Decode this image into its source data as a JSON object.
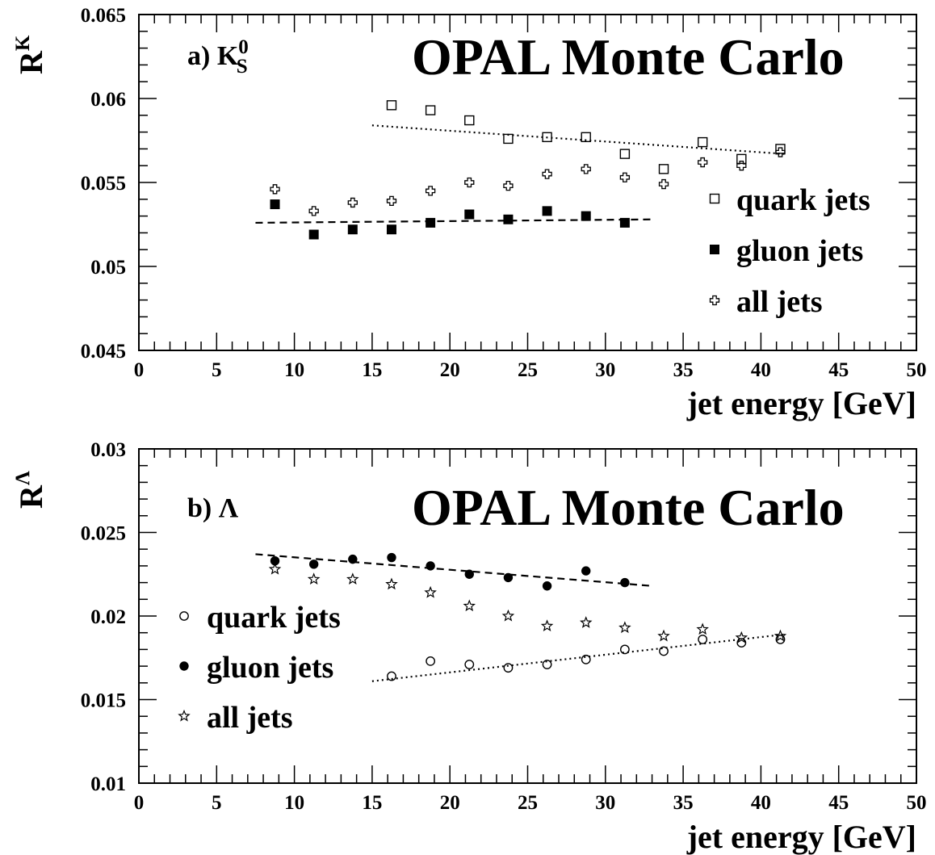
{
  "chart_data": [
    {
      "type": "scatter",
      "panel_label": "a) K",
      "panel_label_sub": "S",
      "panel_label_sup": "0",
      "title": "OPAL Monte Carlo",
      "xlabel": "jet energy [GeV]",
      "ylabel": "R",
      "ylabel_sup": "K",
      "xlim": [
        0,
        50
      ],
      "ylim": [
        0.045,
        0.065
      ],
      "xticks": [
        0,
        5,
        10,
        15,
        20,
        25,
        30,
        35,
        40,
        45,
        50
      ],
      "xtick_labels": [
        "0",
        "5",
        "10",
        "15",
        "20",
        "25",
        "30",
        "35",
        "40",
        "45",
        "50"
      ],
      "yticks": [
        0.045,
        0.05,
        0.055,
        0.06,
        0.065
      ],
      "ytick_labels": [
        "0.045",
        "0.05",
        "0.055",
        "0.06",
        "0.065"
      ],
      "legend_position": "right",
      "series": [
        {
          "name": "quark jets",
          "marker": "open-square",
          "x": [
            16.25,
            18.75,
            21.25,
            23.75,
            26.25,
            28.75,
            31.25,
            33.75,
            36.25,
            38.75,
            41.25
          ],
          "y": [
            0.0596,
            0.0593,
            0.0587,
            0.0576,
            0.0577,
            0.0577,
            0.0567,
            0.0558,
            0.0574,
            0.0564,
            0.057
          ]
        },
        {
          "name": "gluon jets",
          "marker": "filled-square",
          "x": [
            8.75,
            11.25,
            13.75,
            16.25,
            18.75,
            21.25,
            23.75,
            26.25,
            28.75,
            31.25
          ],
          "y": [
            0.0537,
            0.0519,
            0.0522,
            0.0522,
            0.0526,
            0.0531,
            0.0528,
            0.0533,
            0.053,
            0.0526
          ]
        },
        {
          "name": "all jets",
          "marker": "open-cross",
          "x": [
            8.75,
            11.25,
            13.75,
            16.25,
            18.75,
            21.25,
            23.75,
            26.25,
            28.75,
            31.25,
            33.75,
            36.25,
            38.75,
            41.25
          ],
          "y": [
            0.0546,
            0.0533,
            0.0538,
            0.0539,
            0.0545,
            0.055,
            0.0548,
            0.0555,
            0.0558,
            0.0553,
            0.0549,
            0.0562,
            0.056,
            0.0568
          ]
        }
      ],
      "fits": [
        {
          "series": "quark jets",
          "style": "dotted",
          "x": [
            15.0,
            41.5
          ],
          "y": [
            0.0584,
            0.0567
          ]
        },
        {
          "series": "gluon jets",
          "style": "dashed",
          "x": [
            7.5,
            33.0
          ],
          "y": [
            0.0526,
            0.0528
          ]
        }
      ]
    },
    {
      "type": "scatter",
      "panel_label": "b) Λ",
      "title": "OPAL Monte Carlo",
      "xlabel": "jet energy [GeV]",
      "ylabel": "R",
      "ylabel_sup": "Λ",
      "xlim": [
        0,
        50
      ],
      "ylim": [
        0.01,
        0.03
      ],
      "xticks": [
        0,
        5,
        10,
        15,
        20,
        25,
        30,
        35,
        40,
        45,
        50
      ],
      "xtick_labels": [
        "0",
        "5",
        "10",
        "15",
        "20",
        "25",
        "30",
        "35",
        "40",
        "45",
        "50"
      ],
      "yticks": [
        0.01,
        0.015,
        0.02,
        0.025,
        0.03
      ],
      "ytick_labels": [
        "0.01",
        "0.015",
        "0.02",
        "0.025",
        "0.03"
      ],
      "legend_position": "left",
      "series": [
        {
          "name": "quark jets",
          "marker": "open-circle",
          "x": [
            16.25,
            18.75,
            21.25,
            23.75,
            26.25,
            28.75,
            31.25,
            33.75,
            36.25,
            38.75,
            41.25
          ],
          "y": [
            0.0164,
            0.0173,
            0.0171,
            0.0169,
            0.0171,
            0.0174,
            0.018,
            0.0179,
            0.0186,
            0.0184,
            0.0186
          ]
        },
        {
          "name": "gluon jets",
          "marker": "filled-circle",
          "x": [
            8.75,
            11.25,
            13.75,
            16.25,
            18.75,
            21.25,
            23.75,
            26.25,
            28.75,
            31.25
          ],
          "y": [
            0.0233,
            0.0231,
            0.0234,
            0.0235,
            0.023,
            0.0225,
            0.0223,
            0.0218,
            0.0227,
            0.022
          ]
        },
        {
          "name": "all jets",
          "marker": "open-star",
          "x": [
            8.75,
            11.25,
            13.75,
            16.25,
            18.75,
            21.25,
            23.75,
            26.25,
            28.75,
            31.25,
            33.75,
            36.25,
            38.75,
            41.25
          ],
          "y": [
            0.0228,
            0.0222,
            0.0222,
            0.0219,
            0.0214,
            0.0206,
            0.02,
            0.0194,
            0.0196,
            0.0193,
            0.0188,
            0.0192,
            0.0187,
            0.0188
          ]
        }
      ],
      "fits": [
        {
          "series": "quark jets",
          "style": "dotted",
          "x": [
            15.0,
            41.5
          ],
          "y": [
            0.0161,
            0.0189
          ]
        },
        {
          "series": "gluon jets",
          "style": "dashed",
          "x": [
            7.5,
            33.0
          ],
          "y": [
            0.0237,
            0.0218
          ]
        }
      ]
    }
  ]
}
